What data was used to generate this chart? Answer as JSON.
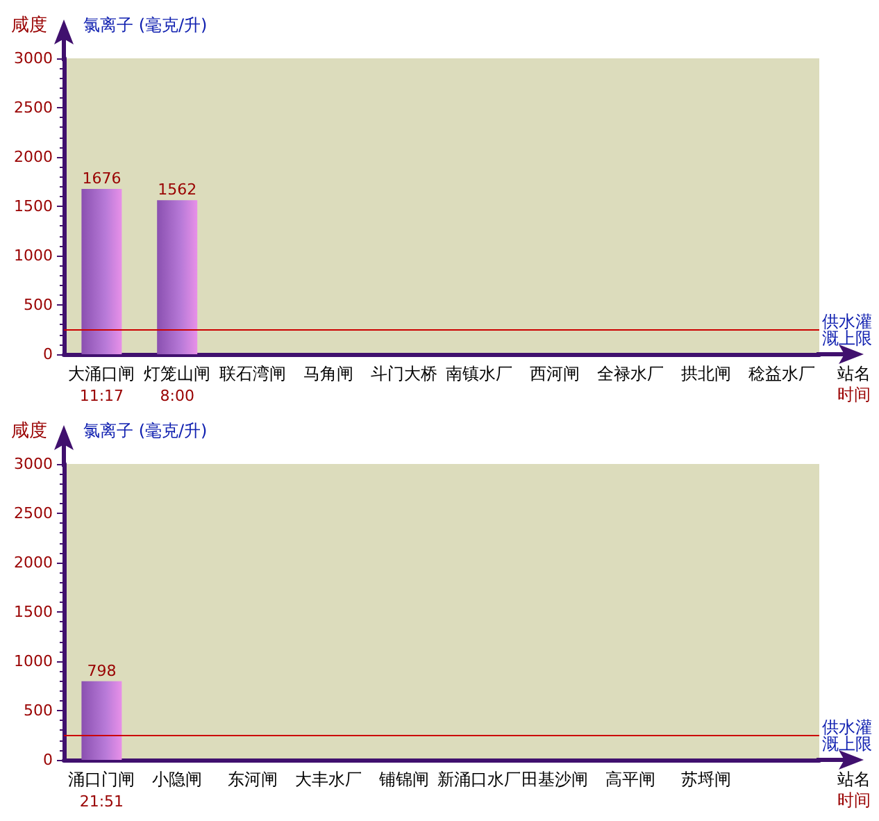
{
  "chart_data": [
    {
      "type": "bar",
      "ylabel": "咸度",
      "annotations": [
        "氯离子 (毫克/升)",
        "时间"
      ],
      "xlabel": "站名",
      "categories": [
        "大涌口闸\n11:17",
        "灯笼山闸\n8:00",
        "联石湾闸",
        "马角闸",
        "斗门大桥",
        "南镇水厂",
        "西河闸",
        "全禄水厂",
        "拱北闸",
        "稔益水厂"
      ],
      "values": [
        1676,
        1562,
        null,
        null,
        null,
        null,
        null,
        null,
        null,
        null
      ],
      "color": "#b87ad8",
      "data_labels": true,
      "ylim": [
        0,
        3000
      ],
      "yticks": [
        0,
        500,
        1000,
        1500,
        2000,
        2500,
        3000
      ],
      "grid": false,
      "ref_lines": [
        {
          "axis": "y",
          "value": 250,
          "label": "供水灌溉上限",
          "color": "#cc0000"
        }
      ]
    },
    {
      "type": "bar",
      "ylabel": "咸度",
      "annotations": [
        "氯离子 (毫克/升)",
        "时间"
      ],
      "xlabel": "站名",
      "categories": [
        "涌口门闸\n21:51",
        "小隐闸",
        "东河闸",
        "大丰水厂",
        "铺锦闸",
        "新涌口水厂",
        "田基沙闸",
        "高平闸",
        "苏埒闸",
        null
      ],
      "values": [
        798,
        null,
        null,
        null,
        null,
        null,
        null,
        null,
        null,
        null
      ],
      "color": "#b87ad8",
      "data_labels": true,
      "ylim": [
        0,
        3000
      ],
      "yticks": [
        0,
        500,
        1000,
        1500,
        2000,
        2500,
        3000
      ],
      "grid": false,
      "ref_lines": [
        {
          "axis": "y",
          "value": 250,
          "label": "供水灌溉上限",
          "color": "#cc0000"
        }
      ]
    }
  ]
}
